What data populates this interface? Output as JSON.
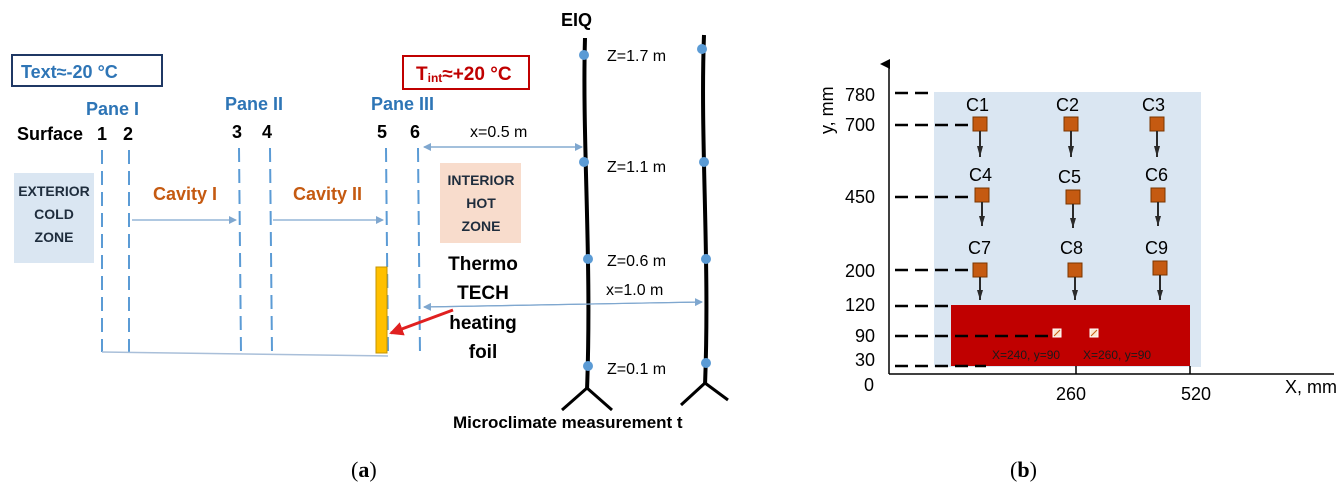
{
  "panel_a": {
    "text_ext": "Text≈-20 °C",
    "t_int": {
      "prefix": "T",
      "sub": "int",
      "rest": "≈+20 °C"
    },
    "panes": [
      "Pane I",
      "Pane II",
      "Pane III"
    ],
    "surface_label": "Surface",
    "surface_numbers": [
      "1",
      "2",
      "3",
      "4",
      "5",
      "6"
    ],
    "cavities": [
      "Cavity I",
      "Cavity II"
    ],
    "exterior_zone": [
      "EXTERIOR",
      "COLD",
      "ZONE"
    ],
    "interior_zone": [
      "INTERIOR",
      "HOT",
      "ZONE"
    ],
    "foil_label": [
      "Thermo",
      "TECH",
      "heating",
      "foil"
    ],
    "eiq_label": "EIQ",
    "heights": [
      "Z=1.7 m",
      "Z=1.1 m",
      "Z=0.6 m",
      "Z=0.1 m"
    ],
    "distances": [
      "x=0.5 m",
      "x=1.0 m"
    ],
    "caption": "Microclimate measurement t",
    "panel_label": "a"
  },
  "panel_b": {
    "y_axis_label": "y, mm",
    "x_axis_label": "X, mm",
    "y_ticks": [
      "780",
      "700",
      "450",
      "200",
      "120",
      "90",
      "30",
      "0"
    ],
    "x_ticks": [
      "260",
      "520"
    ],
    "sensors": [
      "C1",
      "C2",
      "C3",
      "C4",
      "C5",
      "C6",
      "C7",
      "C8",
      "C9"
    ],
    "points": [
      "X=240, y=90",
      "X=260, y=90"
    ],
    "panel_label": "b"
  },
  "colors": {
    "blue_text": "#2e75b6",
    "orange_text": "#c55a11",
    "red": "#c00000",
    "dashed": "#5b9bd5",
    "zone_bg": "#dae6f2",
    "hot_bg": "#f8dccc",
    "foil": "#ffc000",
    "sensor": "#c55a11",
    "heater": "#c00000",
    "node": "#5b9bd5"
  }
}
